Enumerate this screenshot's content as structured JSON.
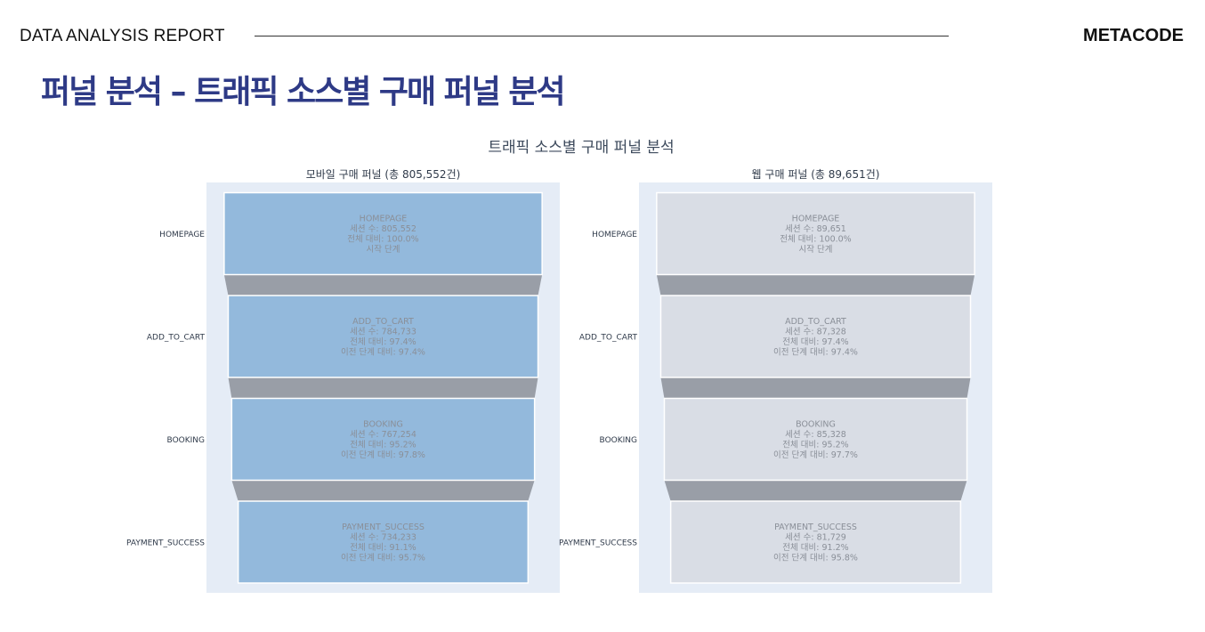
{
  "header": {
    "report_label": "DATA ANALYSIS REPORT",
    "brand": "METACODE"
  },
  "page": {
    "title": "퍼널 분석 – 트래픽 소스별 구매 퍼널 분석"
  },
  "colors": {
    "title": "#2e3a86",
    "plot_bg": "#e5ecf6",
    "mobile_fill": "#93b9dc",
    "web_fill": "#d9dde5",
    "connector": "#999ea7",
    "text": "#8a8f98"
  },
  "chart_data": {
    "type": "funnel",
    "title": "트래픽 소스별 구매 퍼널 분석",
    "stages": [
      "HOMEPAGE",
      "ADD_TO_CART",
      "BOOKING",
      "PAYMENT_SUCCESS"
    ],
    "series": [
      {
        "name": "모바일 구매 퍼널 (총 805,552건)",
        "values": [
          805552,
          784733,
          767254,
          734233
        ],
        "labels": [
          [
            "HOMEPAGE",
            "세션 수: 805,552",
            "전체 대비: 100.0%",
            "시작 단계"
          ],
          [
            "ADD_TO_CART",
            "세션 수: 784,733",
            "전체 대비: 97.4%",
            "이전 단계 대비: 97.4%"
          ],
          [
            "BOOKING",
            "세션 수: 767,254",
            "전체 대비: 95.2%",
            "이전 단계 대비: 97.8%"
          ],
          [
            "PAYMENT_SUCCESS",
            "세션 수: 734,233",
            "전체 대비: 91.1%",
            "이전 단계 대비: 95.7%"
          ]
        ]
      },
      {
        "name": "웹 구매 퍼널 (총 89,651건)",
        "values": [
          89651,
          87328,
          85328,
          81729
        ],
        "labels": [
          [
            "HOMEPAGE",
            "세션 수: 89,651",
            "전체 대비: 100.0%",
            "시작 단계"
          ],
          [
            "ADD_TO_CART",
            "세션 수: 87,328",
            "전체 대비: 97.4%",
            "이전 단계 대비: 97.4%"
          ],
          [
            "BOOKING",
            "세션 수: 85,328",
            "전체 대비: 95.2%",
            "이전 단계 대비: 97.7%"
          ],
          [
            "PAYMENT_SUCCESS",
            "세션 수: 81,729",
            "전체 대비: 91.2%",
            "이전 단계 대비: 95.8%"
          ]
        ]
      }
    ]
  }
}
